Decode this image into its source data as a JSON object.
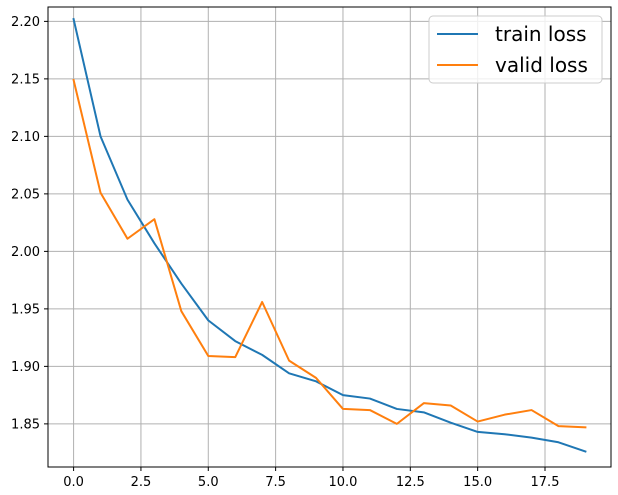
{
  "chart_data": {
    "type": "line",
    "title": "",
    "xlabel": "",
    "ylabel": "",
    "xlim": [
      -0.95,
      19.95
    ],
    "ylim": [
      1.8125,
      2.2125
    ],
    "grid": true,
    "legend_position": "top-right",
    "x_ticks": [
      0.0,
      2.5,
      5.0,
      7.5,
      10.0,
      12.5,
      15.0,
      17.5
    ],
    "x_tick_labels": [
      "0.0",
      "2.5",
      "5.0",
      "7.5",
      "10.0",
      "12.5",
      "15.0",
      "17.5"
    ],
    "y_ticks": [
      1.85,
      1.9,
      1.95,
      2.0,
      2.05,
      2.1,
      2.15,
      2.2
    ],
    "y_tick_labels": [
      "1.85",
      "1.90",
      "1.95",
      "2.00",
      "2.05",
      "2.10",
      "2.15",
      "2.20"
    ],
    "x": [
      0,
      1,
      2,
      3,
      4,
      5,
      6,
      7,
      8,
      9,
      10,
      11,
      12,
      13,
      14,
      15,
      16,
      17,
      18,
      19
    ],
    "series": [
      {
        "name": "train loss",
        "color": "#1f77b4",
        "values": [
          2.202,
          2.1,
          2.045,
          2.007,
          1.972,
          1.94,
          1.922,
          1.91,
          1.894,
          1.887,
          1.875,
          1.872,
          1.863,
          1.86,
          1.851,
          1.843,
          1.841,
          1.838,
          1.834,
          1.826
        ]
      },
      {
        "name": "valid loss",
        "color": "#ff7f0e",
        "values": [
          2.149,
          2.051,
          2.011,
          2.028,
          1.948,
          1.909,
          1.908,
          1.956,
          1.905,
          1.89,
          1.863,
          1.862,
          1.85,
          1.868,
          1.866,
          1.852,
          1.858,
          1.862,
          1.848,
          1.847
        ]
      }
    ]
  }
}
